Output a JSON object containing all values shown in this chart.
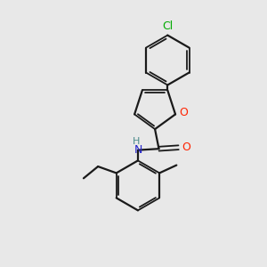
{
  "background_color": "#e8e8e8",
  "bond_color": "#1a1a1a",
  "cl_color": "#00aa00",
  "o_color": "#ff2200",
  "n_color": "#2222cc",
  "h_color": "#4a8a8a",
  "figsize": [
    3.0,
    3.0
  ],
  "dpi": 100,
  "xlim": [
    0,
    10
  ],
  "ylim": [
    0,
    10
  ]
}
